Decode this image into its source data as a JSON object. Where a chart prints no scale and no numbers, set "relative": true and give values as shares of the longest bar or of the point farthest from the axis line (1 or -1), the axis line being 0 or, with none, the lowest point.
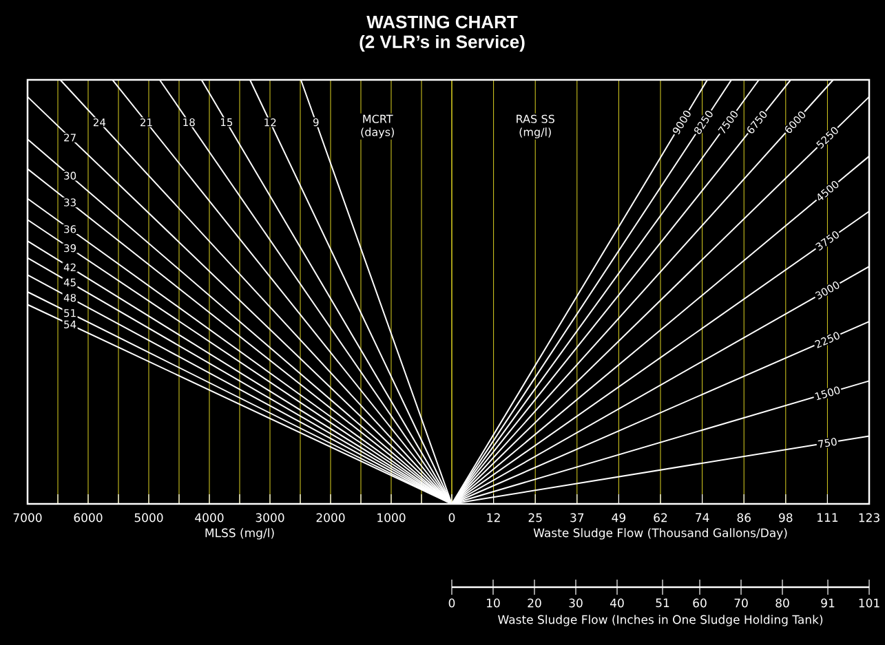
{
  "chart_data": [
    {
      "type": "line",
      "title": "WASTING CHART",
      "subtitle": "(2 VLR’s in Service)",
      "xlabel": "MLSS (mg/l)",
      "relative": true,
      "grid": "x",
      "tick_labels": "x",
      "xlim": [
        7000,
        0
      ],
      "xticks": [
        {
          "value": 0,
          "label": null
        },
        {
          "value": 500,
          "label": null
        },
        1000,
        {
          "value": 1500,
          "label": null
        },
        2000,
        {
          "value": 2500,
          "label": null
        },
        3000,
        {
          "value": 3500,
          "label": null
        },
        4000,
        {
          "value": 4500,
          "label": null
        },
        5000,
        {
          "value": 5500,
          "label": null
        },
        6000,
        {
          "value": 6500,
          "label": null
        },
        7000
      ],
      "annotations": [
        "MCRT (days)"
      ],
      "series": [
        {
          "name": "9",
          "color": "#ffffff",
          "x": [
            0,
            2490
          ],
          "values": [
            0,
            1
          ]
        },
        {
          "name": "12",
          "color": "#ffffff",
          "x": [
            0,
            3330
          ],
          "values": [
            0,
            1
          ]
        },
        {
          "name": "15",
          "color": "#ffffff",
          "x": [
            0,
            4130
          ],
          "values": [
            0,
            1
          ]
        },
        {
          "name": "18",
          "color": "#ffffff",
          "x": [
            0,
            4820
          ],
          "values": [
            0,
            1
          ]
        },
        {
          "name": "21",
          "color": "#ffffff",
          "x": [
            0,
            5600
          ],
          "values": [
            0,
            1
          ]
        },
        {
          "name": "24",
          "color": "#ffffff",
          "x": [
            0,
            6460
          ],
          "values": [
            0,
            1
          ]
        },
        {
          "name": "27",
          "color": "#ffffff",
          "x": [
            0,
            7000
          ],
          "values": [
            0,
            0.96
          ]
        },
        {
          "name": "30",
          "color": "#ffffff",
          "x": [
            0,
            7000
          ],
          "values": [
            0,
            0.86
          ]
        },
        {
          "name": "33",
          "color": "#ffffff",
          "x": [
            0,
            7000
          ],
          "values": [
            0,
            0.79
          ]
        },
        {
          "name": "36",
          "color": "#ffffff",
          "x": [
            0,
            7000
          ],
          "values": [
            0,
            0.72
          ]
        },
        {
          "name": "39",
          "color": "#ffffff",
          "x": [
            0,
            7000
          ],
          "values": [
            0,
            0.67
          ]
        },
        {
          "name": "42",
          "color": "#ffffff",
          "x": [
            0,
            7000
          ],
          "values": [
            0,
            0.62
          ]
        },
        {
          "name": "45",
          "color": "#ffffff",
          "x": [
            0,
            7000
          ],
          "values": [
            0,
            0.58
          ]
        },
        {
          "name": "48",
          "color": "#ffffff",
          "x": [
            0,
            7000
          ],
          "values": [
            0,
            0.54
          ]
        },
        {
          "name": "51",
          "color": "#ffffff",
          "x": [
            0,
            7000
          ],
          "values": [
            0,
            0.5
          ]
        },
        {
          "name": "54",
          "color": "#ffffff",
          "x": [
            0,
            7000
          ],
          "values": [
            0,
            0.47
          ]
        }
      ]
    },
    {
      "type": "line",
      "xlabel": "Waste Sludge Flow (Thousand Gallons/Day)",
      "x2label": "Waste Sludge Flow (Inches in One Sludge Holding Tank)",
      "relative": true,
      "grid": "x",
      "tick_labels": "x",
      "xlim": [
        0,
        123
      ],
      "xticks": [
        0,
        {
          "value": 12.3,
          "label": "12"
        },
        {
          "value": 24.6,
          "label": "25"
        },
        {
          "value": 36.9,
          "label": "37"
        },
        {
          "value": 49.2,
          "label": "49"
        },
        {
          "value": 61.5,
          "label": "62"
        },
        {
          "value": 73.8,
          "label": "74"
        },
        {
          "value": 86.1,
          "label": "86"
        },
        {
          "value": 98.4,
          "label": "98"
        },
        {
          "value": 110.7,
          "label": "111"
        },
        123
      ],
      "x2lim": [
        0,
        101
      ],
      "x2ticks": [
        0,
        10,
        20,
        30,
        40,
        51,
        60,
        70,
        80,
        91,
        101
      ],
      "annotations": [
        "RAS SS (mg/l)"
      ],
      "series": [
        {
          "name": "9000",
          "color": "#ffffff",
          "x": [
            0,
            75.3
          ],
          "values": [
            0,
            1
          ]
        },
        {
          "name": "8250",
          "color": "#ffffff",
          "x": [
            0,
            82.4
          ],
          "values": [
            0,
            1
          ]
        },
        {
          "name": "7500",
          "color": "#ffffff",
          "x": [
            0,
            90.5
          ],
          "values": [
            0,
            1
          ]
        },
        {
          "name": "6750",
          "color": "#ffffff",
          "x": [
            0,
            99.9
          ],
          "values": [
            0,
            1
          ]
        },
        {
          "name": "6000",
          "color": "#ffffff",
          "x": [
            0,
            112.4
          ],
          "values": [
            0,
            1
          ]
        },
        {
          "name": "5250",
          "color": "#ffffff",
          "x": [
            0,
            123
          ],
          "values": [
            0,
            0.96
          ]
        },
        {
          "name": "4500",
          "color": "#ffffff",
          "x": [
            0,
            123
          ],
          "values": [
            0,
            0.82
          ]
        },
        {
          "name": "3750",
          "color": "#ffffff",
          "x": [
            0,
            123
          ],
          "values": [
            0,
            0.69
          ]
        },
        {
          "name": "3000",
          "color": "#ffffff",
          "x": [
            0,
            123
          ],
          "values": [
            0,
            0.56
          ]
        },
        {
          "name": "2250",
          "color": "#ffffff",
          "x": [
            0,
            123
          ],
          "values": [
            0,
            0.43
          ]
        },
        {
          "name": "1500",
          "color": "#ffffff",
          "x": [
            0,
            123
          ],
          "values": [
            0,
            0.29
          ]
        },
        {
          "name": "750",
          "color": "#ffffff",
          "x": [
            0,
            123
          ],
          "values": [
            0,
            0.16
          ]
        }
      ]
    }
  ]
}
